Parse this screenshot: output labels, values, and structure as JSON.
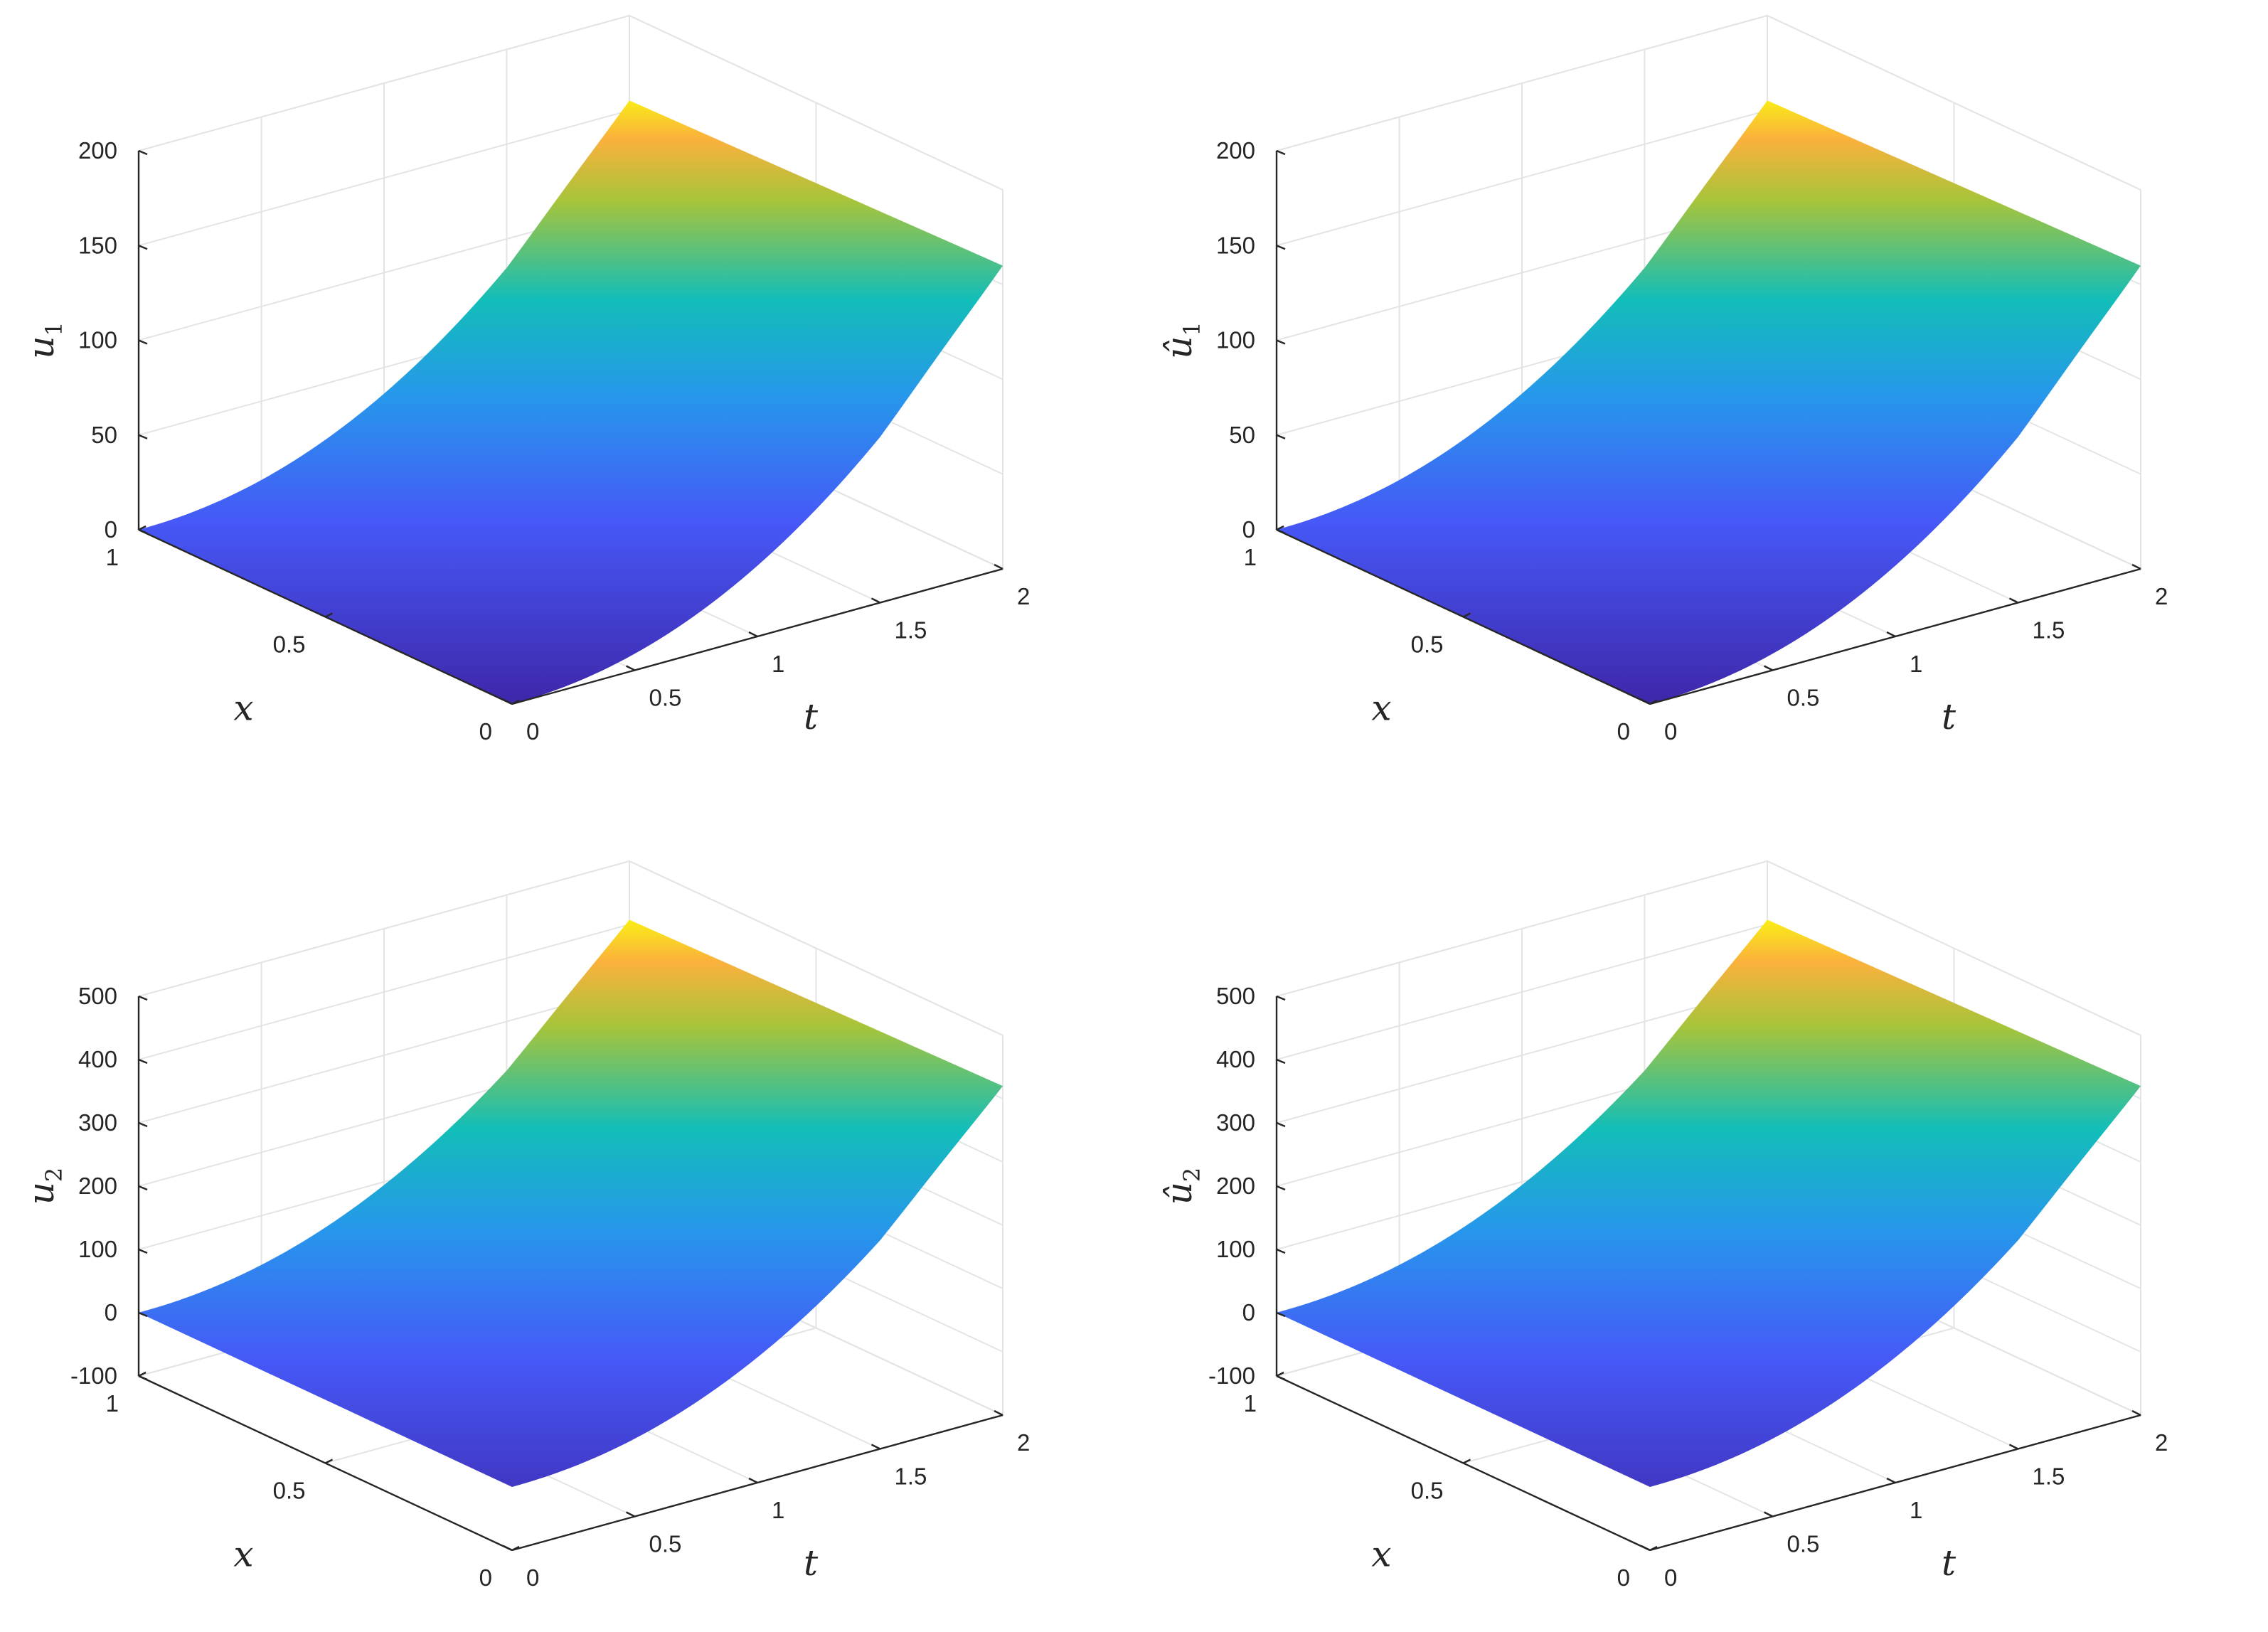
{
  "chart_data": [
    {
      "type": "surface",
      "zlabel": "u",
      "zlabel_sub": "1",
      "zlabel_hat": false,
      "xlabel": "x",
      "tlabel": "t",
      "zlim": [
        0,
        200
      ],
      "zticks": [
        "0",
        "50",
        "100",
        "150",
        "200"
      ],
      "xticks": [
        "0",
        "0.5",
        "1"
      ],
      "tticks": [
        "0",
        "0.5",
        "1",
        "1.5",
        "2"
      ],
      "xlim": [
        0,
        1
      ],
      "tlim": [
        0,
        2
      ],
      "corner_values": {
        "x0_t0": 0,
        "x1_t0": 0,
        "x1_t2": 160,
        "x0_t2": 160
      },
      "peak_value": 163,
      "colormap": "parula",
      "grid": true
    },
    {
      "type": "surface",
      "zlabel": "u",
      "zlabel_sub": "1",
      "zlabel_hat": true,
      "xlabel": "x",
      "tlabel": "t",
      "zlim": [
        0,
        200
      ],
      "zticks": [
        "0",
        "50",
        "100",
        "150",
        "200"
      ],
      "xticks": [
        "0",
        "0.5",
        "1"
      ],
      "tticks": [
        "0",
        "0.5",
        "1",
        "1.5",
        "2"
      ],
      "xlim": [
        0,
        1
      ],
      "tlim": [
        0,
        2
      ],
      "corner_values": {
        "x0_t0": 0,
        "x1_t0": 0,
        "x1_t2": 160,
        "x0_t2": 160
      },
      "peak_value": 163,
      "colormap": "parula",
      "grid": true
    },
    {
      "type": "surface",
      "zlabel": "u",
      "zlabel_sub": "2",
      "zlabel_hat": false,
      "xlabel": "x",
      "tlabel": "t",
      "zlim": [
        -100,
        500
      ],
      "zticks": [
        "-100",
        "0",
        "100",
        "200",
        "300",
        "400",
        "500"
      ],
      "xticks": [
        "0",
        "0.5",
        "1"
      ],
      "tticks": [
        "0",
        "0.5",
        "1",
        "1.5",
        "2"
      ],
      "xlim": [
        0,
        1
      ],
      "tlim": [
        0,
        2
      ],
      "corner_values": {
        "x0_t0": 0,
        "x1_t0": 0,
        "x1_t2": 420,
        "x0_t2": 420
      },
      "peak_value": 428,
      "colormap": "parula",
      "grid": true
    },
    {
      "type": "surface",
      "zlabel": "u",
      "zlabel_sub": "2",
      "zlabel_hat": true,
      "xlabel": "x",
      "tlabel": "t",
      "zlim": [
        -100,
        500
      ],
      "zticks": [
        "-100",
        "0",
        "100",
        "200",
        "300",
        "400",
        "500"
      ],
      "xticks": [
        "0",
        "0.5",
        "1"
      ],
      "tticks": [
        "0",
        "0.5",
        "1",
        "1.5",
        "2"
      ],
      "xlim": [
        0,
        1
      ],
      "tlim": [
        0,
        2
      ],
      "corner_values": {
        "x0_t0": 0,
        "x1_t0": 0,
        "x1_t2": 420,
        "x0_t2": 420
      },
      "peak_value": 428,
      "colormap": "parula",
      "grid": true
    }
  ]
}
